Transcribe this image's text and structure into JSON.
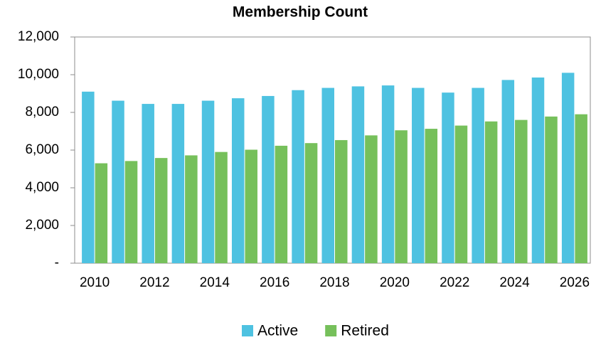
{
  "chart_data": {
    "type": "bar",
    "title": "Membership Count",
    "categories": [
      "2010",
      null,
      "2012",
      null,
      "2014",
      null,
      "2016",
      null,
      "2018",
      null,
      "2020",
      null,
      "2022",
      null,
      "2024",
      null,
      "2026"
    ],
    "series": [
      {
        "name": "Active",
        "color": "#4ec2e1",
        "values": [
          9100,
          8620,
          8450,
          8450,
          8620,
          8750,
          8870,
          9180,
          9300,
          9380,
          9430,
          9300,
          9050,
          9300,
          9720,
          9850,
          10100
        ]
      },
      {
        "name": "Retired",
        "color": "#76c05b",
        "values": [
          5300,
          5420,
          5580,
          5720,
          5900,
          6020,
          6230,
          6370,
          6530,
          6780,
          7050,
          7130,
          7300,
          7520,
          7600,
          7780,
          7900
        ]
      }
    ],
    "ylim": [
      0,
      12000
    ],
    "yticks": [
      {
        "value": 0,
        "label": "-"
      },
      {
        "value": 2000,
        "label": "2,000"
      },
      {
        "value": 4000,
        "label": "4,000"
      },
      {
        "value": 6000,
        "label": "6,000"
      },
      {
        "value": 8000,
        "label": "8,000"
      },
      {
        "value": 10000,
        "label": "10,000"
      },
      {
        "value": 12000,
        "label": "12,000"
      }
    ],
    "grid": false,
    "legend": "bottom"
  }
}
